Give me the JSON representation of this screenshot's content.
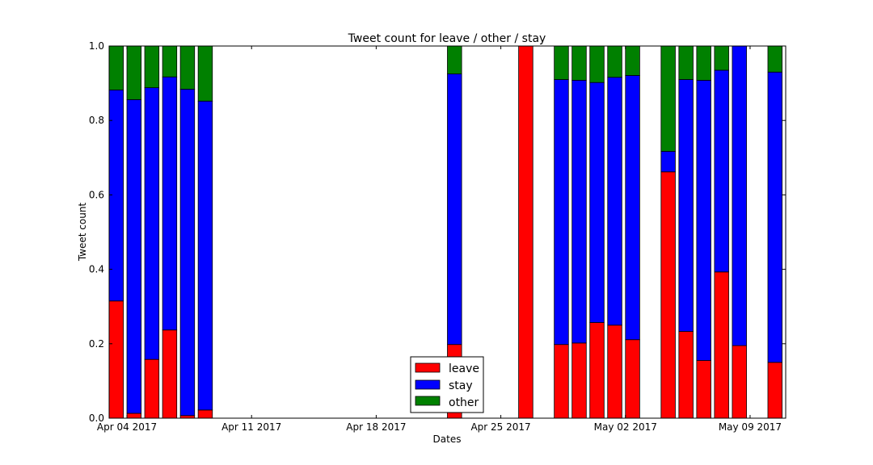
{
  "chart_data": {
    "type": "bar",
    "stacked": true,
    "title": "Tweet count for leave / other / stay",
    "xlabel": "Dates",
    "ylabel": "Tweet count",
    "xlim": [
      "2017-04-03",
      "2017-05-10"
    ],
    "ylim": [
      0,
      1.0
    ],
    "yticks": [
      0.0,
      0.2,
      0.4,
      0.6,
      0.8,
      1.0
    ],
    "ytick_labels": [
      "0.0",
      "0.2",
      "0.4",
      "0.6",
      "0.8",
      "1.0"
    ],
    "xticks": [
      "2017-04-04",
      "2017-04-11",
      "2017-04-18",
      "2017-04-25",
      "2017-05-02",
      "2017-05-09"
    ],
    "xtick_labels": [
      "Apr 04 2017",
      "Apr 11 2017",
      "Apr 18 2017",
      "Apr 25 2017",
      "May 02 2017",
      "May 09 2017"
    ],
    "legend": {
      "position": "bottom-center",
      "entries": [
        "leave",
        "stay",
        "other"
      ]
    },
    "colors": {
      "leave": "#ff0000",
      "stay": "#0000ff",
      "other": "#008000"
    },
    "x": [
      "2017-04-03",
      "2017-04-04",
      "2017-04-05",
      "2017-04-06",
      "2017-04-07",
      "2017-04-08",
      "2017-04-22",
      "2017-04-26",
      "2017-04-28",
      "2017-04-29",
      "2017-04-30",
      "2017-05-01",
      "2017-05-02",
      "2017-05-04",
      "2017-05-05",
      "2017-05-06",
      "2017-05-07",
      "2017-05-08",
      "2017-05-10"
    ],
    "series": [
      {
        "name": "leave",
        "values": [
          0.315,
          0.013,
          0.158,
          0.237,
          0.007,
          0.022,
          0.198,
          1.0,
          0.198,
          0.202,
          0.257,
          0.25,
          0.211,
          0.662,
          0.233,
          0.155,
          0.393,
          0.195,
          0.15
        ]
      },
      {
        "name": "stay",
        "values": [
          0.567,
          0.843,
          0.73,
          0.68,
          0.877,
          0.83,
          0.727,
          0.0,
          0.712,
          0.706,
          0.645,
          0.666,
          0.71,
          0.055,
          0.677,
          0.753,
          0.542,
          0.805,
          0.78
        ]
      },
      {
        "name": "other",
        "values": [
          0.118,
          0.144,
          0.112,
          0.083,
          0.116,
          0.148,
          0.075,
          0.0,
          0.09,
          0.092,
          0.098,
          0.084,
          0.079,
          0.283,
          0.09,
          0.092,
          0.065,
          0.0,
          0.07
        ]
      }
    ]
  }
}
